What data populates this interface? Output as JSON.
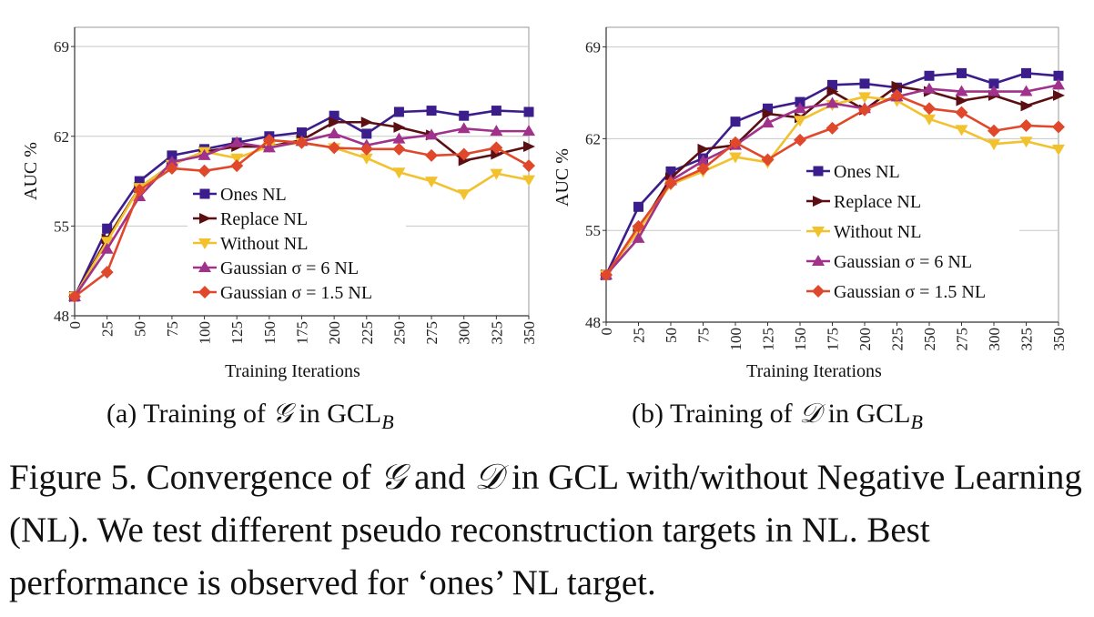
{
  "colors": {
    "ones": "#3b1d8c",
    "replace": "#5c0f12",
    "without": "#f2c12e",
    "gauss6": "#a0328c",
    "gauss15": "#e0482c",
    "grid": "#c8c8c8",
    "axis": "#333333"
  },
  "chart_data": [
    {
      "type": "line",
      "subcaption": {
        "prefix": "(a) Training of ",
        "symbol": "𝒢",
        "suffix": " in GCL",
        "subscript": "B"
      },
      "xlabel": "Training Iterations",
      "ylabel": "AUC %",
      "x": [
        0,
        25,
        50,
        75,
        100,
        125,
        150,
        175,
        200,
        225,
        250,
        275,
        300,
        325,
        350
      ],
      "yticks": [
        48,
        55,
        62,
        69
      ],
      "ylim": [
        48,
        70.5
      ],
      "grid": true,
      "legend_position": "center",
      "series": [
        {
          "name": "Ones NL",
          "marker": "square",
          "color_key": "ones",
          "values": [
            49.5,
            54.8,
            58.5,
            60.5,
            61.0,
            61.5,
            62.0,
            62.3,
            63.6,
            62.2,
            63.9,
            64.0,
            63.6,
            64.0,
            63.9
          ]
        },
        {
          "name": "Replace NL",
          "marker": "triangle-right",
          "color_key": "replace",
          "values": [
            49.5,
            54.0,
            58.0,
            59.8,
            60.8,
            61.2,
            61.2,
            61.7,
            63.1,
            63.1,
            62.7,
            62.1,
            60.1,
            60.6,
            61.2
          ]
        },
        {
          "name": "Without NL",
          "marker": "triangle-down",
          "color_key": "without",
          "values": [
            49.5,
            53.8,
            58.0,
            59.8,
            60.8,
            60.3,
            61.2,
            61.5,
            61.1,
            60.3,
            59.2,
            58.5,
            57.5,
            59.1,
            58.6
          ]
        },
        {
          "name": "Gaussian σ = 6 NL",
          "marker": "triangle-up",
          "color_key": "gauss6",
          "values": [
            49.5,
            53.2,
            57.3,
            60.0,
            60.5,
            61.5,
            61.1,
            61.6,
            62.2,
            61.3,
            61.8,
            62.1,
            62.6,
            62.4,
            62.4
          ]
        },
        {
          "name": "Gaussian σ = 1.5 NL",
          "marker": "diamond",
          "color_key": "gauss15",
          "values": [
            49.5,
            51.4,
            57.8,
            59.5,
            59.3,
            59.7,
            61.7,
            61.5,
            61.1,
            61.0,
            61.0,
            60.5,
            60.6,
            61.1,
            59.7
          ]
        }
      ]
    },
    {
      "type": "line",
      "subcaption": {
        "prefix": "(b) Training of ",
        "symbol": "𝒟",
        "suffix": " in GCL",
        "subscript": "B"
      },
      "xlabel": "Training Iterations",
      "ylabel": "AUC %",
      "x": [
        0,
        25,
        50,
        75,
        100,
        125,
        150,
        175,
        200,
        225,
        250,
        275,
        300,
        325,
        350
      ],
      "yticks": [
        48,
        55,
        62,
        69
      ],
      "ylim": [
        48,
        70.5
      ],
      "grid": true,
      "legend_position": "center",
      "series": [
        {
          "name": "Ones NL",
          "marker": "square",
          "color_key": "ones",
          "values": [
            51.6,
            56.8,
            59.5,
            60.5,
            63.3,
            64.3,
            64.8,
            66.1,
            66.2,
            65.9,
            66.8,
            67.0,
            66.2,
            67.0,
            66.8
          ]
        },
        {
          "name": "Replace NL",
          "marker": "triangle-right",
          "color_key": "replace",
          "values": [
            51.6,
            55.0,
            59.0,
            61.2,
            61.5,
            63.9,
            63.6,
            65.6,
            64.2,
            66.0,
            65.6,
            64.9,
            65.3,
            64.5,
            65.3
          ]
        },
        {
          "name": "Without NL",
          "marker": "triangle-down",
          "color_key": "without",
          "values": [
            51.6,
            55.0,
            58.5,
            59.5,
            60.6,
            60.2,
            63.4,
            64.6,
            65.2,
            64.9,
            63.5,
            62.7,
            61.6,
            61.8,
            61.2
          ]
        },
        {
          "name": "Gaussian σ = 6 NL",
          "marker": "triangle-up",
          "color_key": "gauss6",
          "values": [
            51.6,
            54.4,
            58.8,
            60.3,
            61.5,
            63.2,
            64.3,
            64.7,
            64.3,
            65.2,
            65.8,
            65.6,
            65.6,
            65.6,
            66.1
          ]
        },
        {
          "name": "Gaussian σ = 1.5 NL",
          "marker": "diamond",
          "color_key": "gauss15",
          "values": [
            51.6,
            55.3,
            58.6,
            59.7,
            61.7,
            60.4,
            61.9,
            62.8,
            64.2,
            65.3,
            64.3,
            64.0,
            62.6,
            63.0,
            62.9
          ]
        }
      ]
    }
  ],
  "caption": {
    "part1": "Figure 5. Convergence of ",
    "symbol_g": "𝒢",
    "part2": " and ",
    "symbol_d": "𝒟",
    "part3": " in GCL with/without Negative Learning (NL). We test different pseudo reconstruction targets in NL. Best performance is observed for ‘ones’ NL target."
  }
}
